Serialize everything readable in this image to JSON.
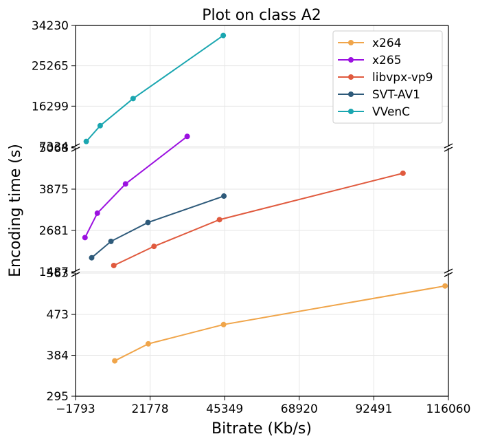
{
  "chart_data": {
    "type": "line",
    "title": "Plot on class A2",
    "xlabel": "Bitrate (Kb/s)",
    "ylabel": "Encoding time (s)",
    "xlim": [
      -1793,
      116060
    ],
    "xticks": [
      "−1793",
      "21778",
      "45349",
      "68920",
      "92491",
      "116060"
    ],
    "xtick_values": [
      -1793,
      21778,
      45349,
      68920,
      92491,
      116060
    ],
    "grid": true,
    "legend_position": "top-right",
    "broken_y_axis": true,
    "panels": [
      {
        "ylim": [
          7334,
          34230
        ],
        "yticks": [
          "7334",
          "16299",
          "25265",
          "34230"
        ],
        "ytick_values": [
          7334,
          16299,
          25265,
          34230
        ]
      },
      {
        "ylim": [
          1487,
          5068
        ],
        "yticks": [
          "1487",
          "2681",
          "3875",
          "5068"
        ],
        "ytick_values": [
          1487,
          2681,
          3875,
          5068
        ]
      },
      {
        "ylim": [
          295,
          563
        ],
        "yticks": [
          "295",
          "384",
          "473",
          "563"
        ],
        "ytick_values": [
          295,
          384,
          473,
          563
        ]
      }
    ],
    "series": [
      {
        "name": "x264",
        "color": "#f0a54a",
        "panel": 2,
        "points": [
          [
            10600,
            372
          ],
          [
            21200,
            409
          ],
          [
            45000,
            451
          ],
          [
            115000,
            535
          ]
        ]
      },
      {
        "name": "x265",
        "color": "#9b10e0",
        "panel": 1,
        "points": [
          [
            1200,
            2475
          ],
          [
            5100,
            3180
          ],
          [
            14000,
            4025
          ],
          [
            33500,
            5400
          ]
        ]
      },
      {
        "name": "libvpx-vp9",
        "color": "#e05a3e",
        "panel": 1,
        "points": [
          [
            10300,
            1667
          ],
          [
            23000,
            2220
          ],
          [
            43700,
            2992
          ],
          [
            101700,
            4335
          ]
        ]
      },
      {
        "name": "SVT-AV1",
        "color": "#2e5a7a",
        "panel": 1,
        "points": [
          [
            3300,
            1891
          ],
          [
            9400,
            2364
          ],
          [
            21100,
            2910
          ],
          [
            45100,
            3675
          ]
        ]
      },
      {
        "name": "VVenC",
        "color": "#1aa6b0",
        "panel": 0,
        "points": [
          [
            1600,
            8460
          ],
          [
            6000,
            11960
          ],
          [
            16400,
            17980
          ],
          [
            44900,
            32000
          ]
        ]
      }
    ]
  }
}
